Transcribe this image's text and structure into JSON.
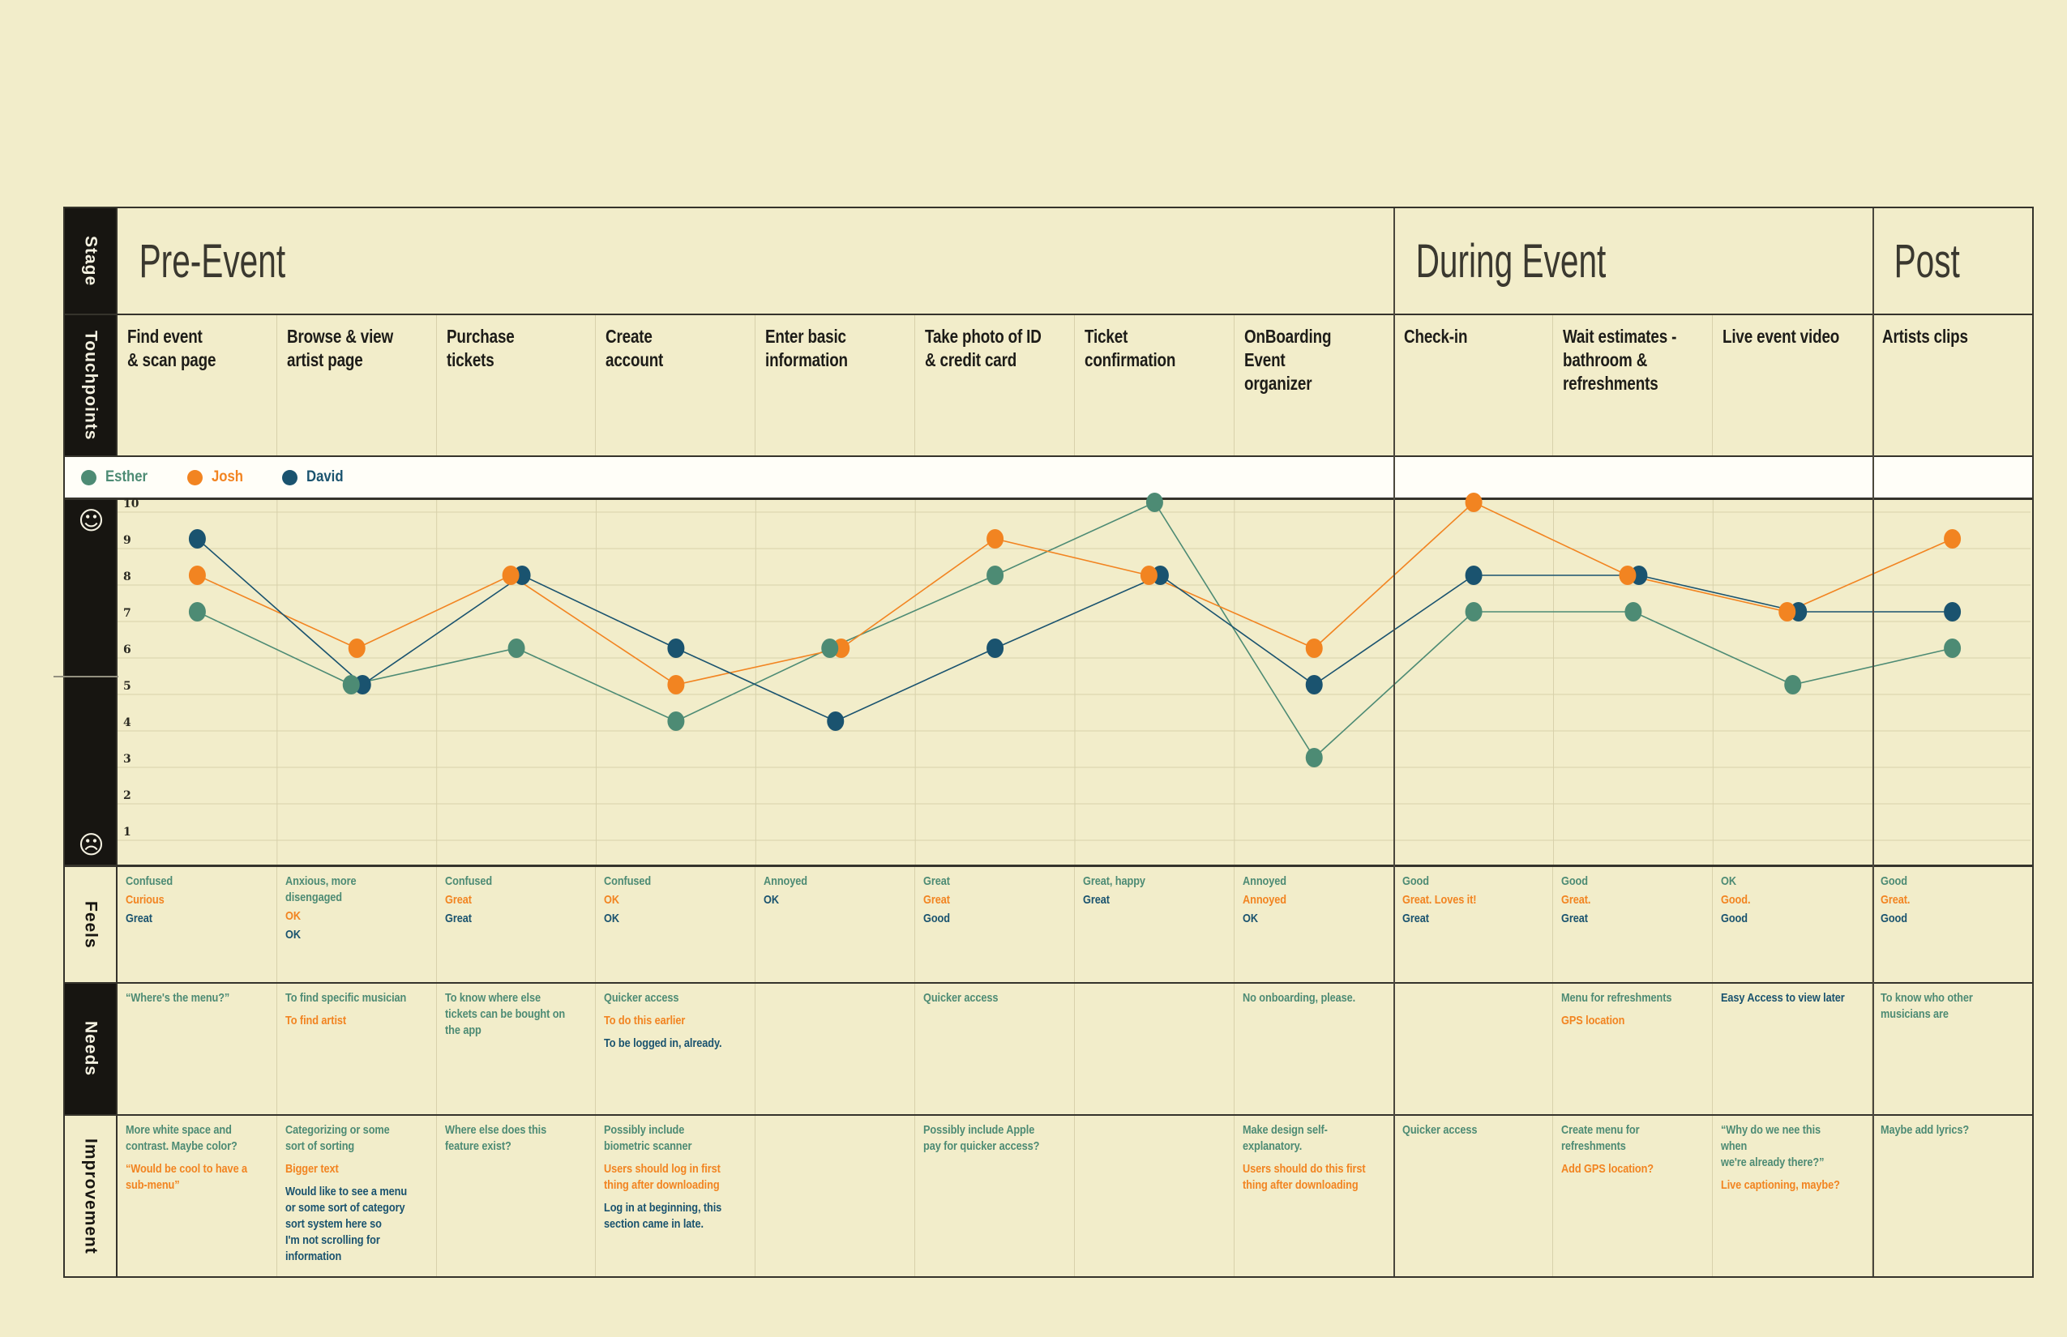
{
  "icons": {
    "scale_top": "☺",
    "scale_bottom": "☹"
  },
  "stage_row": {
    "label": "Stage",
    "stages": [
      {
        "label": "Pre-Event",
        "span": 8
      },
      {
        "label": "During Event",
        "span": 3
      },
      {
        "label": "Post",
        "span": 1
      }
    ]
  },
  "touchpoints_row": {
    "label": "Touchpoints",
    "items": [
      "Find event\n& scan page",
      "Browse & view\nartist page",
      "Purchase tickets",
      "Create\naccount",
      "Enter basic\ninformation",
      "Take photo of ID\n& credit card",
      "Ticket confirmation",
      "OnBoarding\nEvent\norganizer",
      "Check-in",
      "Wait estimates -\nbathroom &\nrefreshments",
      "Live event video",
      "Artists clips"
    ]
  },
  "legend": {
    "people": [
      {
        "name": "Esther",
        "color": "#4d8b74"
      },
      {
        "name": "Josh",
        "color": "#f28421"
      },
      {
        "name": "David",
        "color": "#1a536f"
      }
    ]
  },
  "chart_data": {
    "type": "line",
    "title": "",
    "xlabel": "",
    "ylabel": "",
    "x_categories": [
      "Find event & scan page",
      "Browse & view artist page",
      "Purchase tickets",
      "Create account",
      "Enter basic information",
      "Take photo of ID & credit card",
      "Ticket confirmation",
      "OnBoarding Event organizer",
      "Check-in",
      "Wait estimates - bathroom & refreshments",
      "Live event video",
      "Artists clips"
    ],
    "y_ticks": [
      10,
      9,
      8,
      7,
      6,
      5,
      4,
      3,
      2,
      1
    ],
    "ylim": [
      1,
      10
    ],
    "grid": true,
    "legend_position": "top",
    "scale_icons": {
      "max": "happy-face",
      "min": "sad-face"
    },
    "series": [
      {
        "name": "Esther",
        "color": "#4d8b74",
        "values": [
          7,
          5,
          6,
          4,
          6,
          8,
          10,
          3,
          7,
          7,
          5,
          6
        ]
      },
      {
        "name": "Josh",
        "color": "#f28421",
        "values": [
          8,
          6,
          8,
          5,
          6,
          9,
          8,
          6,
          10,
          8,
          7,
          9
        ]
      },
      {
        "name": "David",
        "color": "#1a536f",
        "values": [
          9,
          5,
          8,
          6,
          4,
          6,
          8,
          5,
          8,
          8,
          7,
          7
        ]
      }
    ]
  },
  "feels_row": {
    "label": "Feels",
    "cells": [
      [
        {
          "person": "Esther",
          "text": "Confused"
        },
        {
          "person": "Josh",
          "text": "Curious"
        },
        {
          "person": "David",
          "text": "Great"
        }
      ],
      [
        {
          "person": "Esther",
          "text": "Anxious, more disengaged"
        },
        {
          "person": "Josh",
          "text": "OK"
        },
        {
          "person": "David",
          "text": "OK"
        }
      ],
      [
        {
          "person": "Esther",
          "text": "Confused"
        },
        {
          "person": "Josh",
          "text": "Great"
        },
        {
          "person": "David",
          "text": "Great"
        }
      ],
      [
        {
          "person": "Esther",
          "text": "Confused"
        },
        {
          "person": "Josh",
          "text": "OK"
        },
        {
          "person": "David",
          "text": "OK"
        }
      ],
      [
        {
          "person": "Esther",
          "text": "Annoyed"
        },
        {
          "person": "David",
          "text": "OK"
        }
      ],
      [
        {
          "person": "Esther",
          "text": "Great"
        },
        {
          "person": "Josh",
          "text": "Great"
        },
        {
          "person": "David",
          "text": "Good"
        }
      ],
      [
        {
          "person": "Esther",
          "text": "Great, happy"
        },
        {
          "person": "David",
          "text": "Great"
        }
      ],
      [
        {
          "person": "Esther",
          "text": "Annoyed"
        },
        {
          "person": "Josh",
          "text": "Annoyed"
        },
        {
          "person": "David",
          "text": "OK"
        }
      ],
      [
        {
          "person": "Esther",
          "text": "Good"
        },
        {
          "person": "Josh",
          "text": "Great. Loves it!"
        },
        {
          "person": "David",
          "text": "Great"
        }
      ],
      [
        {
          "person": "Esther",
          "text": "Good"
        },
        {
          "person": "Josh",
          "text": "Great."
        },
        {
          "person": "David",
          "text": "Great"
        }
      ],
      [
        {
          "person": "Esther",
          "text": "OK"
        },
        {
          "person": "Josh",
          "text": "Good."
        },
        {
          "person": "David",
          "text": "Good"
        }
      ],
      [
        {
          "person": "Esther",
          "text": "Good"
        },
        {
          "person": "Josh",
          "text": "Great."
        },
        {
          "person": "David",
          "text": "Good"
        }
      ]
    ]
  },
  "needs_row": {
    "label": "Needs",
    "cells": [
      [
        {
          "person": "Esther",
          "text": "“Where's the menu?”"
        }
      ],
      [
        {
          "person": "Esther",
          "text": "To find specific musician"
        },
        {
          "person": "Josh",
          "text": "To find artist"
        }
      ],
      [
        {
          "person": "Esther",
          "text": "To know where else\ntickets can be bought on\nthe app"
        }
      ],
      [
        {
          "person": "Esther",
          "text": "Quicker access"
        },
        {
          "person": "Josh",
          "text": "To do this earlier"
        },
        {
          "person": "David",
          "text": "To be logged in, already."
        }
      ],
      [],
      [
        {
          "person": "Esther",
          "text": "Quicker access"
        }
      ],
      [],
      [
        {
          "person": "Esther",
          "text": "No onboarding, please."
        }
      ],
      [],
      [
        {
          "person": "Esther",
          "text": "Menu for refreshments"
        },
        {
          "person": "Josh",
          "text": "GPS location"
        }
      ],
      [
        {
          "person": "David",
          "text": "Easy Access to view later"
        }
      ],
      [
        {
          "person": "Esther",
          "text": "To know who other\nmusicians are"
        }
      ]
    ]
  },
  "improvement_row": {
    "label": "Improvement",
    "cells": [
      [
        {
          "person": "Esther",
          "text": "More white space and\ncontrast. Maybe color?"
        },
        {
          "person": "Josh",
          "text": "“Would be cool to have a\nsub-menu”"
        }
      ],
      [
        {
          "person": "Esther",
          "text": "Categorizing or some\nsort of sorting"
        },
        {
          "person": "Josh",
          "text": "Bigger text"
        },
        {
          "person": "David",
          "text": "Would like to see a menu\nor some sort of category\nsort system here so\nI'm not scrolling for\ninformation"
        }
      ],
      [
        {
          "person": "Esther",
          "text": "Where else does this\nfeature exist?"
        }
      ],
      [
        {
          "person": "Esther",
          "text": "Possibly include\nbiometric scanner"
        },
        {
          "person": "Josh",
          "text": "Users should log in first\nthing after downloading"
        },
        {
          "person": "David",
          "text": "Log in at beginning, this\nsection came in late."
        }
      ],
      [],
      [
        {
          "person": "Esther",
          "text": "Possibly include Apple\npay for quicker access?"
        }
      ],
      [],
      [
        {
          "person": "Esther",
          "text": "Make design self-\nexplanatory."
        },
        {
          "person": "Josh",
          "text": "Users should do this first\nthing after downloading"
        }
      ],
      [
        {
          "person": "Esther",
          "text": "Quicker access"
        }
      ],
      [
        {
          "person": "Esther",
          "text": "Create menu for\nrefreshments"
        },
        {
          "person": "Josh",
          "text": "Add GPS location?"
        }
      ],
      [
        {
          "person": "Esther",
          "text": "“Why do we nee this when\nwe're already there?”"
        },
        {
          "person": "Josh",
          "text": "Live captioning, maybe?"
        }
      ],
      [
        {
          "person": "Esther",
          "text": "Maybe add lyrics?"
        }
      ]
    ]
  }
}
